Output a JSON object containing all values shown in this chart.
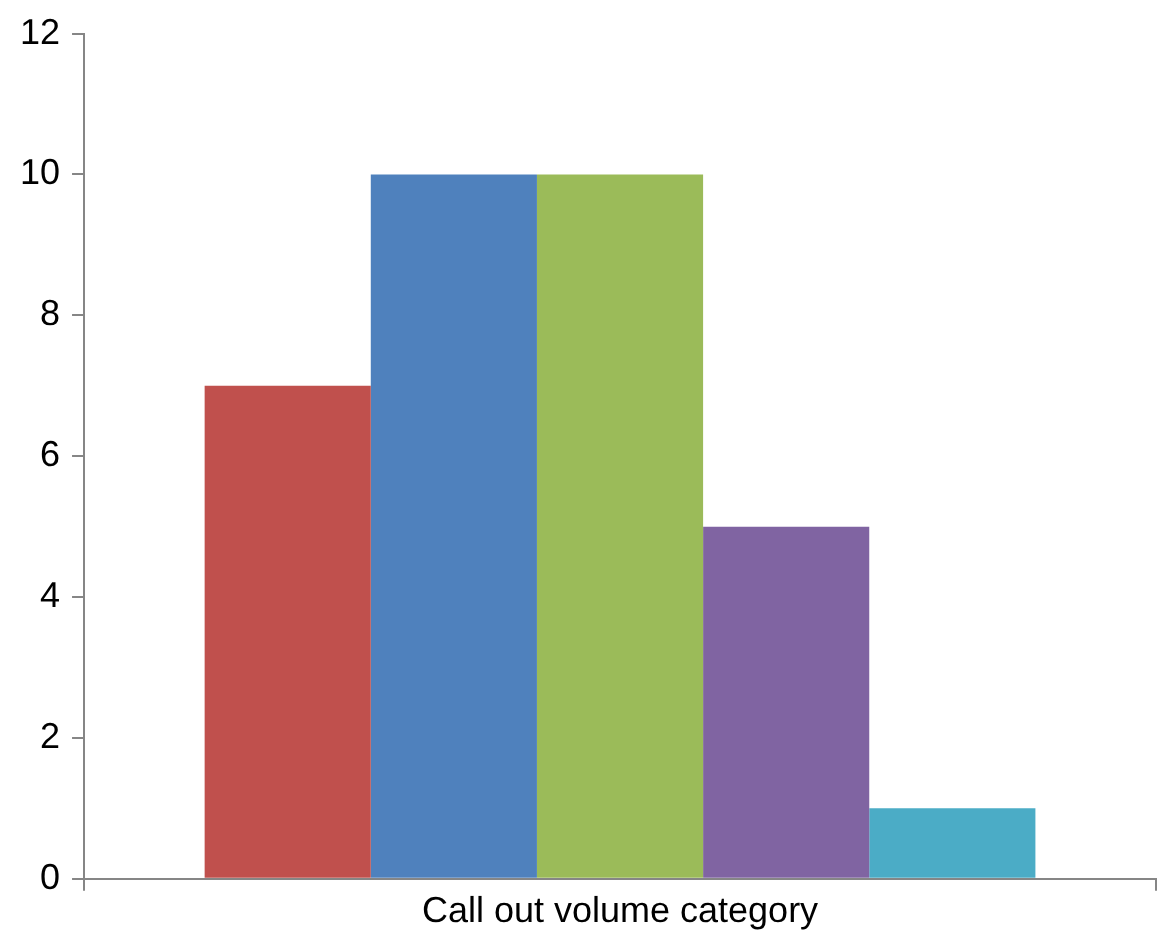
{
  "chart_data": {
    "type": "bar",
    "xlabel": "Call out volume category",
    "categories": [
      null
    ],
    "series": [
      {
        "color": "#c0504d",
        "values": [
          7
        ]
      },
      {
        "color": "#4f81bd",
        "values": [
          10
        ]
      },
      {
        "color": "#9bbb59",
        "values": [
          10
        ]
      },
      {
        "color": "#8064a2",
        "values": [
          5
        ]
      },
      {
        "color": "#4bacc6",
        "values": [
          1
        ]
      }
    ],
    "ylim": [
      0,
      12
    ],
    "yticks": [
      0,
      2,
      4,
      6,
      8,
      10,
      12
    ],
    "grid": false,
    "legend": false
  }
}
